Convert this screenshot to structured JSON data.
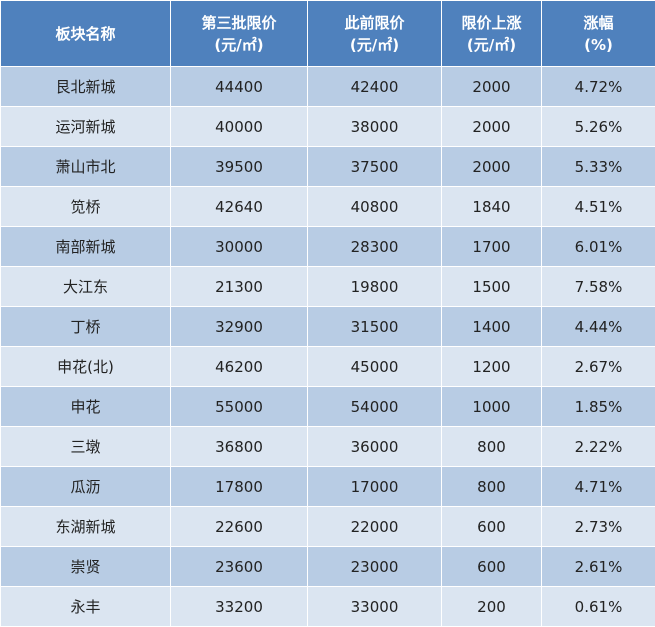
{
  "header": {
    "c1": [
      "板块名称"
    ],
    "c2": [
      "第三批限价",
      "(元/㎡)"
    ],
    "c3": [
      "此前限价",
      "(元/㎡)"
    ],
    "c4": [
      "限价上涨",
      "(元/㎡)"
    ],
    "c5": [
      "涨幅",
      "(%)"
    ]
  },
  "rows": [
    [
      "艮北新城",
      "44400",
      "42400",
      "2000",
      "4.72%"
    ],
    [
      "运河新城",
      "40000",
      "38000",
      "2000",
      "5.26%"
    ],
    [
      "萧山市北",
      "39500",
      "37500",
      "2000",
      "5.33%"
    ],
    [
      "笕桥",
      "42640",
      "40800",
      "1840",
      "4.51%"
    ],
    [
      "南部新城",
      "30000",
      "28300",
      "1700",
      "6.01%"
    ],
    [
      "大江东",
      "21300",
      "19800",
      "1500",
      "7.58%"
    ],
    [
      "丁桥",
      "32900",
      "31500",
      "1400",
      "4.44%"
    ],
    [
      "申花(北)",
      "46200",
      "45000",
      "1200",
      "2.67%"
    ],
    [
      "申花",
      "55000",
      "54000",
      "1000",
      "1.85%"
    ],
    [
      "三墩",
      "36800",
      "36000",
      "800",
      "2.22%"
    ],
    [
      "瓜沥",
      "17800",
      "17000",
      "800",
      "4.71%"
    ],
    [
      "东湖新城",
      "22600",
      "22000",
      "600",
      "2.73%"
    ],
    [
      "崇贤",
      "23600",
      "23000",
      "600",
      "2.61%"
    ],
    [
      "永丰",
      "33200",
      "33000",
      "200",
      "0.61%"
    ]
  ],
  "colors": {
    "header_bg": "#4f81bd",
    "row_odd_bg": "#b8cce4",
    "row_even_bg": "#dbe5f1"
  }
}
